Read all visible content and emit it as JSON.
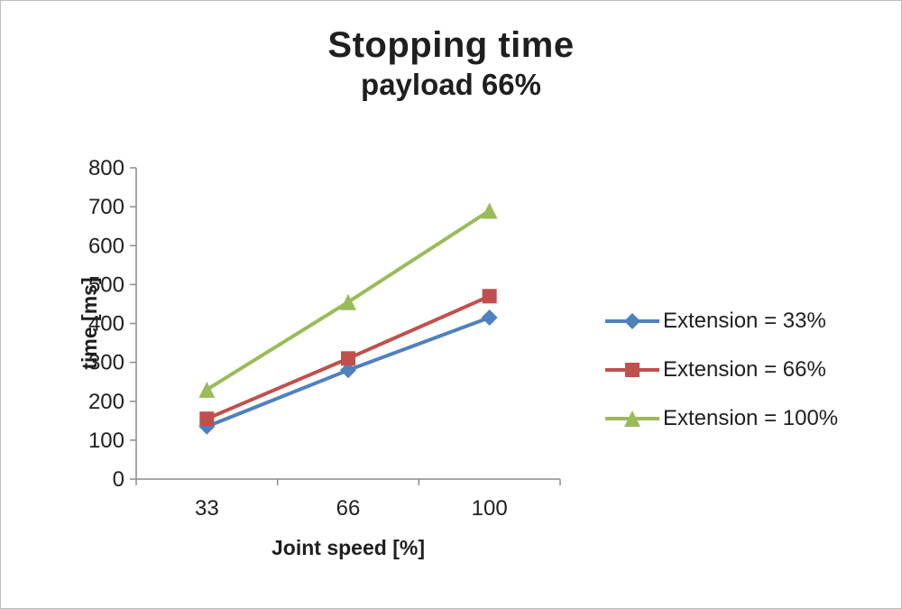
{
  "title": "Stopping time",
  "subtitle": "payload 66%",
  "chart_data": {
    "type": "line",
    "categories": [
      "33",
      "66",
      "100"
    ],
    "series": [
      {
        "name": "Extension = 33%",
        "color": "#4F81BD",
        "marker": "diamond",
        "values": [
          135,
          280,
          415
        ]
      },
      {
        "name": "Extension = 66%",
        "color": "#C0504D",
        "marker": "square",
        "values": [
          155,
          310,
          470
        ]
      },
      {
        "name": "Extension = 100%",
        "color": "#9BBB59",
        "marker": "triangle",
        "values": [
          230,
          455,
          690
        ]
      }
    ],
    "xlabel": "Joint speed [%]",
    "ylabel": "time [ms]",
    "ylim": [
      0,
      800
    ],
    "ytick_step": 100,
    "grid": false,
    "legend_position": "right",
    "axis_color": "#8c8c8c"
  }
}
